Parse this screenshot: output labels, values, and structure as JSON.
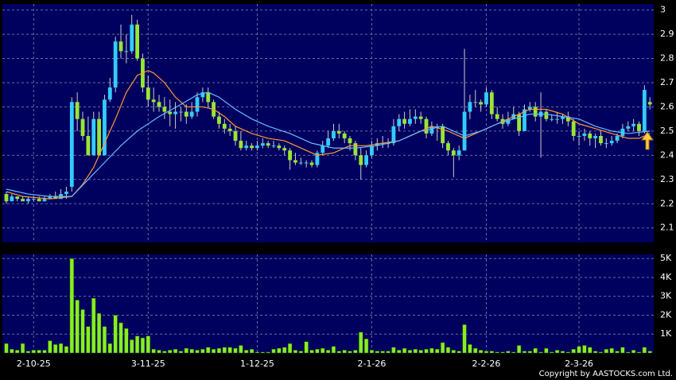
{
  "chart_data": {
    "type": "candlestick",
    "up_color": "#33ccff",
    "down_color": "#99e633",
    "volume_color": "#88ee22",
    "xlim": [
      -0.73,
      118.7
    ],
    "xticks": [
      {
        "value": 5,
        "label": "2-10-25"
      },
      {
        "value": 26,
        "label": "3-11-25"
      },
      {
        "value": 46,
        "label": "1-12-25"
      },
      {
        "value": 67,
        "label": "2-1-26"
      },
      {
        "value": 88,
        "label": "2-2-26"
      },
      {
        "value": 105,
        "label": "2-3-26"
      }
    ],
    "ylim": [
      2.04,
      3.025
    ],
    "yticks": [
      2.1,
      2.2,
      2.3,
      2.4,
      2.5,
      2.6,
      2.7,
      2.8,
      2.9,
      3
    ],
    "y2lim": [
      0,
      5220
    ],
    "y2ticks": [
      {
        "value": 1000,
        "label": "1K"
      },
      {
        "value": 2000,
        "label": "2K"
      },
      {
        "value": 3000,
        "label": "3K"
      },
      {
        "value": 4000,
        "label": "4K"
      },
      {
        "value": 5000,
        "label": "5K"
      }
    ],
    "grid": true,
    "ohlc": [
      [
        2.24,
        2.25,
        2.2,
        2.21
      ],
      [
        2.21,
        2.24,
        2.21,
        2.23
      ],
      [
        2.23,
        2.23,
        2.21,
        2.22
      ],
      [
        2.22,
        2.23,
        2.21,
        2.21
      ],
      [
        2.21,
        2.23,
        2.2,
        2.22
      ],
      [
        2.22,
        2.23,
        2.21,
        2.22
      ],
      [
        2.22,
        2.23,
        2.21,
        2.21
      ],
      [
        2.21,
        2.23,
        2.21,
        2.22
      ],
      [
        2.22,
        2.24,
        2.22,
        2.23
      ],
      [
        2.23,
        2.25,
        2.22,
        2.22
      ],
      [
        2.22,
        2.26,
        2.22,
        2.24
      ],
      [
        2.24,
        2.27,
        2.22,
        2.25
      ],
      [
        2.27,
        2.64,
        2.25,
        2.62
      ],
      [
        2.62,
        2.66,
        2.5,
        2.55
      ],
      [
        2.55,
        2.58,
        2.46,
        2.48
      ],
      [
        2.48,
        2.56,
        2.4,
        2.4
      ],
      [
        2.4,
        2.58,
        2.4,
        2.55
      ],
      [
        2.55,
        2.58,
        2.4,
        2.4
      ],
      [
        2.4,
        2.65,
        2.4,
        2.63
      ],
      [
        2.63,
        2.72,
        2.62,
        2.68
      ],
      [
        2.68,
        2.89,
        2.66,
        2.87
      ],
      [
        2.87,
        2.94,
        2.8,
        2.83
      ],
      [
        2.83,
        2.9,
        2.78,
        2.83
      ],
      [
        2.83,
        2.98,
        2.82,
        2.94
      ],
      [
        2.94,
        2.96,
        2.79,
        2.8
      ],
      [
        2.8,
        2.82,
        2.66,
        2.68
      ],
      [
        2.68,
        2.73,
        2.6,
        2.63
      ],
      [
        2.63,
        2.68,
        2.58,
        2.62
      ],
      [
        2.62,
        2.65,
        2.58,
        2.6
      ],
      [
        2.6,
        2.64,
        2.55,
        2.58
      ],
      [
        2.58,
        2.63,
        2.52,
        2.57
      ],
      [
        2.57,
        2.62,
        2.51,
        2.58
      ],
      [
        2.58,
        2.6,
        2.54,
        2.58
      ],
      [
        2.58,
        2.61,
        2.53,
        2.56
      ],
      [
        2.56,
        2.62,
        2.55,
        2.58
      ],
      [
        2.58,
        2.66,
        2.56,
        2.64
      ],
      [
        2.64,
        2.68,
        2.62,
        2.66
      ],
      [
        2.66,
        2.68,
        2.6,
        2.62
      ],
      [
        2.62,
        2.63,
        2.55,
        2.56
      ],
      [
        2.56,
        2.58,
        2.51,
        2.53
      ],
      [
        2.53,
        2.55,
        2.49,
        2.51
      ],
      [
        2.51,
        2.53,
        2.48,
        2.5
      ],
      [
        2.5,
        2.52,
        2.44,
        2.46
      ],
      [
        2.46,
        2.5,
        2.42,
        2.43
      ],
      [
        2.43,
        2.46,
        2.42,
        2.44
      ],
      [
        2.44,
        2.45,
        2.42,
        2.43
      ],
      [
        2.43,
        2.46,
        2.42,
        2.44
      ],
      [
        2.44,
        2.47,
        2.43,
        2.45
      ],
      [
        2.45,
        2.46,
        2.43,
        2.44
      ],
      [
        2.44,
        2.46,
        2.43,
        2.44
      ],
      [
        2.44,
        2.45,
        2.42,
        2.43
      ],
      [
        2.43,
        2.44,
        2.4,
        2.42
      ],
      [
        2.42,
        2.43,
        2.34,
        2.38
      ],
      [
        2.38,
        2.41,
        2.36,
        2.37
      ],
      [
        2.37,
        2.39,
        2.36,
        2.37
      ],
      [
        2.37,
        2.38,
        2.35,
        2.37
      ],
      [
        2.37,
        2.38,
        2.35,
        2.36
      ],
      [
        2.36,
        2.42,
        2.35,
        2.41
      ],
      [
        2.41,
        2.46,
        2.4,
        2.44
      ],
      [
        2.44,
        2.5,
        2.43,
        2.47
      ],
      [
        2.47,
        2.53,
        2.46,
        2.5
      ],
      [
        2.5,
        2.53,
        2.47,
        2.49
      ],
      [
        2.49,
        2.5,
        2.45,
        2.47
      ],
      [
        2.47,
        2.48,
        2.42,
        2.45
      ],
      [
        2.45,
        2.46,
        2.38,
        2.4
      ],
      [
        2.4,
        2.43,
        2.3,
        2.36
      ],
      [
        2.36,
        2.42,
        2.35,
        2.4
      ],
      [
        2.4,
        2.46,
        2.39,
        2.44
      ],
      [
        2.44,
        2.47,
        2.42,
        2.45
      ],
      [
        2.45,
        2.48,
        2.43,
        2.45
      ],
      [
        2.45,
        2.47,
        2.43,
        2.45
      ],
      [
        2.45,
        2.55,
        2.44,
        2.52
      ],
      [
        2.52,
        2.57,
        2.5,
        2.55
      ],
      [
        2.55,
        2.58,
        2.51,
        2.53
      ],
      [
        2.53,
        2.59,
        2.52,
        2.55
      ],
      [
        2.55,
        2.59,
        2.53,
        2.56
      ],
      [
        2.56,
        2.58,
        2.53,
        2.55
      ],
      [
        2.55,
        2.56,
        2.47,
        2.49
      ],
      [
        2.49,
        2.54,
        2.48,
        2.52
      ],
      [
        2.52,
        2.53,
        2.46,
        2.52
      ],
      [
        2.52,
        2.53,
        2.43,
        2.45
      ],
      [
        2.45,
        2.46,
        2.4,
        2.42
      ],
      [
        2.42,
        2.43,
        2.31,
        2.4
      ],
      [
        2.4,
        2.44,
        2.38,
        2.42
      ],
      [
        2.42,
        2.84,
        2.42,
        2.58
      ],
      [
        2.58,
        2.65,
        2.55,
        2.62
      ],
      [
        2.62,
        2.67,
        2.6,
        2.62
      ],
      [
        2.62,
        2.63,
        2.58,
        2.61
      ],
      [
        2.61,
        2.68,
        2.6,
        2.66
      ],
      [
        2.66,
        2.67,
        2.55,
        2.57
      ],
      [
        2.57,
        2.6,
        2.54,
        2.55
      ],
      [
        2.55,
        2.57,
        2.51,
        2.53
      ],
      [
        2.53,
        2.58,
        2.52,
        2.55
      ],
      [
        2.55,
        2.6,
        2.55,
        2.57
      ],
      [
        2.57,
        2.58,
        2.48,
        2.5
      ],
      [
        2.5,
        2.61,
        2.5,
        2.59
      ],
      [
        2.59,
        2.62,
        2.58,
        2.6
      ],
      [
        2.6,
        2.62,
        2.54,
        2.56
      ],
      [
        2.56,
        2.66,
        2.39,
        2.58
      ],
      [
        2.58,
        2.59,
        2.54,
        2.55
      ],
      [
        2.55,
        2.57,
        2.54,
        2.55
      ],
      [
        2.55,
        2.58,
        2.53,
        2.55
      ],
      [
        2.55,
        2.57,
        2.53,
        2.56
      ],
      [
        2.56,
        2.58,
        2.52,
        2.54
      ],
      [
        2.54,
        2.55,
        2.46,
        2.48
      ],
      [
        2.48,
        2.5,
        2.44,
        2.48
      ],
      [
        2.48,
        2.51,
        2.46,
        2.49
      ],
      [
        2.49,
        2.5,
        2.44,
        2.47
      ],
      [
        2.47,
        2.49,
        2.43,
        2.48
      ],
      [
        2.48,
        2.5,
        2.44,
        2.45
      ],
      [
        2.45,
        2.47,
        2.43,
        2.45
      ],
      [
        2.45,
        2.48,
        2.44,
        2.46
      ],
      [
        2.46,
        2.49,
        2.45,
        2.48
      ],
      [
        2.48,
        2.53,
        2.47,
        2.51
      ],
      [
        2.51,
        2.54,
        2.5,
        2.52
      ],
      [
        2.52,
        2.55,
        2.5,
        2.53
      ],
      [
        2.53,
        2.54,
        2.48,
        2.5
      ],
      [
        2.5,
        2.69,
        2.49,
        2.67
      ],
      [
        2.62,
        2.64,
        2.59,
        2.61
      ]
    ],
    "volume": [
      500,
      200,
      150,
      500,
      100,
      150,
      150,
      150,
      650,
      450,
      500,
      350,
      5000,
      2800,
      2300,
      1400,
      2900,
      2100,
      1400,
      500,
      2000,
      1600,
      1300,
      700,
      900,
      800,
      900,
      200,
      150,
      100,
      150,
      200,
      100,
      250,
      200,
      150,
      200,
      300,
      200,
      250,
      300,
      300,
      250,
      400,
      150,
      200,
      50,
      50,
      50,
      200,
      250,
      300,
      500,
      150,
      100,
      600,
      150,
      200,
      250,
      150,
      350,
      100,
      150,
      100,
      150,
      1100,
      750,
      150,
      100,
      100,
      100,
      300,
      150,
      250,
      150,
      200,
      150,
      200,
      250,
      200,
      550,
      300,
      150,
      100,
      1500,
      450,
      250,
      150,
      100,
      100,
      50,
      50,
      100,
      50,
      400,
      100,
      100,
      250,
      50,
      250,
      50,
      150,
      100,
      50,
      200,
      350,
      400,
      300,
      100,
      50,
      200,
      250,
      100,
      300,
      50,
      150,
      50,
      300,
      100
    ],
    "series": [
      {
        "color": "#ff9933",
        "x": [
          0,
          3,
          8,
          12,
          14,
          16,
          18,
          20,
          22,
          24,
          26,
          27,
          29,
          31,
          33,
          36,
          38,
          40,
          42,
          45,
          48,
          51,
          54,
          57,
          60,
          63,
          66,
          69,
          72,
          75,
          78,
          81,
          84,
          87,
          90,
          93,
          96,
          99,
          102,
          105,
          108,
          111,
          114,
          116,
          118
        ],
        "values": [
          2.25,
          2.23,
          2.22,
          2.23,
          2.28,
          2.35,
          2.45,
          2.55,
          2.66,
          2.73,
          2.75,
          2.74,
          2.7,
          2.64,
          2.6,
          2.6,
          2.59,
          2.56,
          2.52,
          2.49,
          2.47,
          2.46,
          2.43,
          2.4,
          2.41,
          2.44,
          2.44,
          2.45,
          2.46,
          2.49,
          2.52,
          2.5,
          2.47,
          2.5,
          2.53,
          2.56,
          2.59,
          2.59,
          2.57,
          2.53,
          2.51,
          2.49,
          2.47,
          2.47,
          2.49
        ]
      },
      {
        "color": "#66bbff",
        "x": [
          0,
          4,
          8,
          12,
          15,
          18,
          21,
          24,
          28,
          32,
          35,
          37,
          39,
          42,
          45,
          48,
          52,
          56,
          60,
          64,
          68,
          72,
          76,
          80,
          84,
          87,
          90,
          93,
          96,
          99,
          102,
          105,
          108,
          111,
          114,
          118
        ],
        "values": [
          2.26,
          2.24,
          2.23,
          2.23,
          2.3,
          2.37,
          2.44,
          2.5,
          2.56,
          2.61,
          2.65,
          2.66,
          2.64,
          2.59,
          2.55,
          2.52,
          2.49,
          2.45,
          2.43,
          2.43,
          2.44,
          2.46,
          2.5,
          2.52,
          2.48,
          2.5,
          2.53,
          2.55,
          2.57,
          2.57,
          2.56,
          2.55,
          2.52,
          2.5,
          2.49,
          2.5
        ]
      }
    ],
    "copyright": "Copyright by AASTOCKS.com Ltd."
  }
}
